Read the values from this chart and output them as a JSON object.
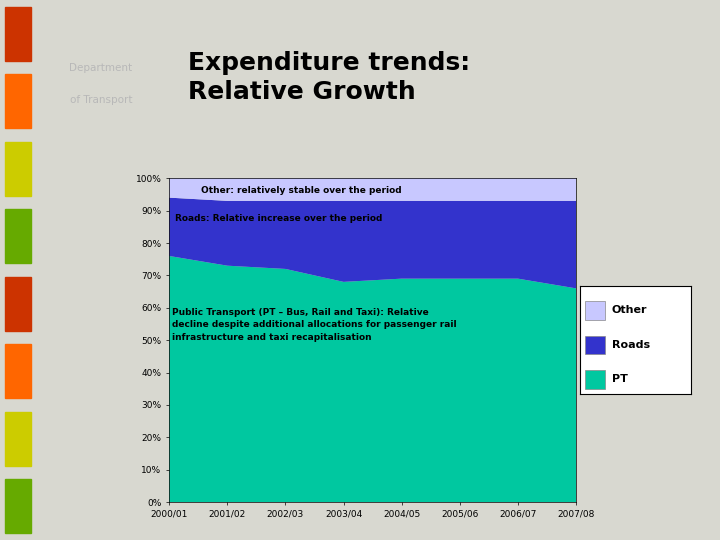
{
  "years": [
    "2000/01",
    "2001/02",
    "2002/03",
    "2003/04",
    "2004/05",
    "2005/06",
    "2006/07",
    "2007/08"
  ],
  "pt_values": [
    76,
    73,
    72,
    68,
    69,
    69,
    69,
    66
  ],
  "roads_values": [
    18,
    20,
    21,
    25,
    24,
    24,
    24,
    27
  ],
  "other_values": [
    6,
    7,
    7,
    7,
    7,
    7,
    7,
    7
  ],
  "colors": {
    "pt": "#00C8A0",
    "roads": "#3333CC",
    "other": "#C8C8FF",
    "bg_header": "#8B8B6B",
    "bg_left": "#4A4A4A",
    "bg_chart": "#D8D8D0",
    "bg_main": "#D8D8D0"
  },
  "title": "Expenditure trends:\nRelative Growth",
  "dept_line1": "Department",
  "dept_line2": "of Transport",
  "annotation_other": "Other: relatively stable over the period",
  "annotation_roads": "Roads: Relative increase over the period",
  "annotation_pt": "Public Transport (PT – Bus, Rail and Taxi): Relative\ndecline despite additional allocations for passenger rail\ninfrastructure and taxi recapitalisation",
  "legend_labels": [
    "Other",
    "Roads",
    "PT"
  ],
  "sidebar_colors_top": [
    "#CC3300",
    "#FF6600",
    "#CCCC00",
    "#66AA00"
  ],
  "sidebar_colors_bot": [
    "#CC3300",
    "#FF6600",
    "#CCCC00",
    "#66AA00"
  ]
}
